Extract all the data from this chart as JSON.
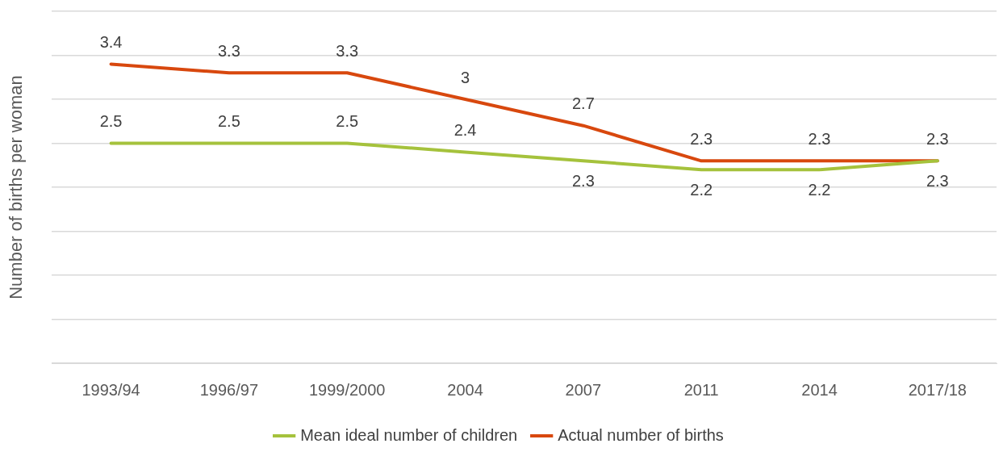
{
  "chart_data": {
    "type": "line",
    "ylabel": "Number of births per woman",
    "categories": [
      "1993/94",
      "1996/97",
      "1999/2000",
      "2004",
      "2007",
      "2011",
      "2014",
      "2017/18"
    ],
    "series": [
      {
        "name": "Mean ideal number of children",
        "color": "#a5c23c",
        "values": [
          2.5,
          2.5,
          2.5,
          2.4,
          2.3,
          2.2,
          2.2,
          2.3
        ]
      },
      {
        "name": "Actual number of births",
        "color": "#d8480e",
        "values": [
          3.4,
          3.3,
          3.3,
          3,
          2.7,
          2.3,
          2.3,
          2.3
        ]
      }
    ],
    "ylim": [
      0,
      4
    ],
    "yticks": [
      {
        "value": 0,
        "label": null
      },
      {
        "value": 0.5,
        "label": null
      },
      {
        "value": 1,
        "label": null
      },
      {
        "value": 1.5,
        "label": null
      },
      {
        "value": 2,
        "label": null
      },
      {
        "value": 2.5,
        "label": null
      },
      {
        "value": 3,
        "label": null
      },
      {
        "value": 3.5,
        "label": null
      },
      {
        "value": 4,
        "label": null
      }
    ],
    "tick_labels": "x",
    "grid": "y",
    "legend": "bottom",
    "data_labels": true,
    "marker": "none",
    "line_style": "solid"
  }
}
